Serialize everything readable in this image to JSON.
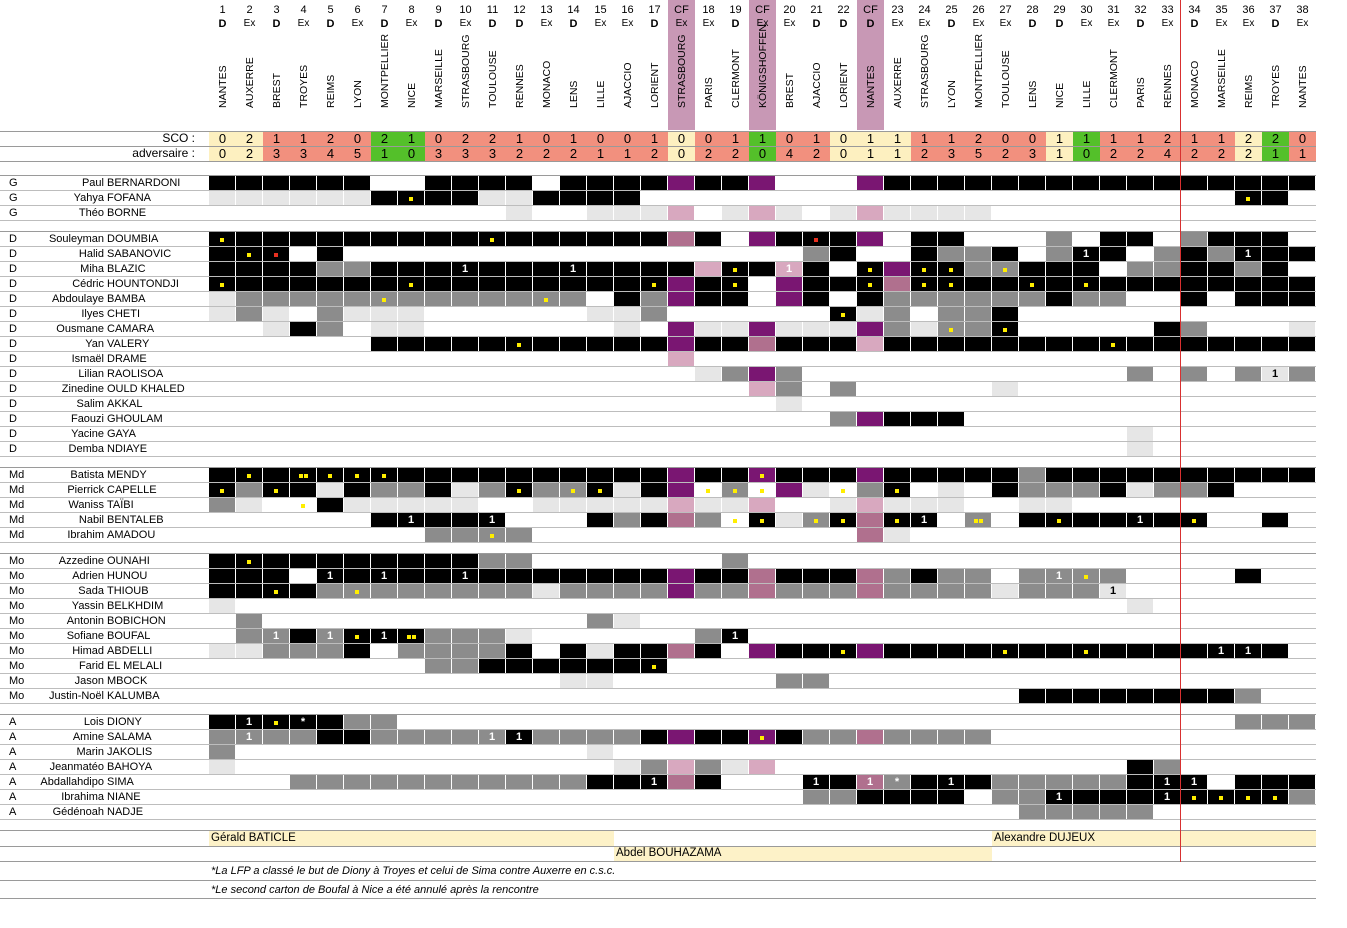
{
  "labels": {
    "sco": "SCO :",
    "adversaire": "adversaire :"
  },
  "matches": [
    {
      "n": "1",
      "c": "D",
      "o": "NANTES",
      "s": "0",
      "a": "0"
    },
    {
      "n": "2",
      "c": "Ex",
      "o": "AUXERRE",
      "s": "2",
      "a": "2"
    },
    {
      "n": "3",
      "c": "D",
      "o": "BREST",
      "s": "1",
      "a": "3"
    },
    {
      "n": "4",
      "c": "Ex",
      "o": "TROYES",
      "s": "1",
      "a": "3"
    },
    {
      "n": "5",
      "c": "D",
      "o": "REIMS",
      "s": "2",
      "a": "4"
    },
    {
      "n": "6",
      "c": "Ex",
      "o": "LYON",
      "s": "0",
      "a": "5"
    },
    {
      "n": "7",
      "c": "D",
      "o": "MONTPELLIER",
      "s": "2",
      "a": "1"
    },
    {
      "n": "8",
      "c": "Ex",
      "o": "NICE",
      "s": "1",
      "a": "0"
    },
    {
      "n": "9",
      "c": "D",
      "o": "MARSEILLE",
      "s": "0",
      "a": "3"
    },
    {
      "n": "10",
      "c": "Ex",
      "o": "STRASBOURG",
      "s": "2",
      "a": "3"
    },
    {
      "n": "11",
      "c": "D",
      "o": "TOULOUSE",
      "s": "2",
      "a": "3"
    },
    {
      "n": "12",
      "c": "D",
      "o": "RENNES",
      "s": "1",
      "a": "2"
    },
    {
      "n": "13",
      "c": "Ex",
      "o": "MONACO",
      "s": "0",
      "a": "2"
    },
    {
      "n": "14",
      "c": "D",
      "o": "LENS",
      "s": "1",
      "a": "2"
    },
    {
      "n": "15",
      "c": "Ex",
      "o": "LILLE",
      "s": "0",
      "a": "1"
    },
    {
      "n": "16",
      "c": "Ex",
      "o": "AJACCIO",
      "s": "0",
      "a": "1"
    },
    {
      "n": "17",
      "c": "D",
      "o": "LORIENT",
      "s": "1",
      "a": "2"
    },
    {
      "n": "CF",
      "c": "Ex",
      "o": "STRASBOURG",
      "s": "0",
      "a": "0",
      "cf": true
    },
    {
      "n": "18",
      "c": "Ex",
      "o": "PARIS",
      "s": "0",
      "a": "2"
    },
    {
      "n": "19",
      "c": "D",
      "o": "CLERMONT",
      "s": "1",
      "a": "2"
    },
    {
      "n": "CF",
      "c": "Ex",
      "o": "KÖNIGSHOFFEN",
      "s": "1",
      "a": "0",
      "cf": true
    },
    {
      "n": "20",
      "c": "Ex",
      "o": "BREST",
      "s": "0",
      "a": "4"
    },
    {
      "n": "21",
      "c": "D",
      "o": "AJACCIO",
      "s": "1",
      "a": "2"
    },
    {
      "n": "22",
      "c": "D",
      "o": "LORIENT",
      "s": "0",
      "a": "0"
    },
    {
      "n": "CF",
      "c": "D",
      "o": "NANTES",
      "s": "1",
      "a": "1",
      "cf": true
    },
    {
      "n": "23",
      "c": "Ex",
      "o": "AUXERRE",
      "s": "1",
      "a": "1"
    },
    {
      "n": "24",
      "c": "Ex",
      "o": "STRASBOURG",
      "s": "1",
      "a": "2"
    },
    {
      "n": "25",
      "c": "D",
      "o": "LYON",
      "s": "1",
      "a": "3"
    },
    {
      "n": "26",
      "c": "Ex",
      "o": "MONTPELLIER",
      "s": "2",
      "a": "5"
    },
    {
      "n": "27",
      "c": "Ex",
      "o": "TOULOUSE",
      "s": "0",
      "a": "2"
    },
    {
      "n": "28",
      "c": "D",
      "o": "LENS",
      "s": "0",
      "a": "3"
    },
    {
      "n": "29",
      "c": "D",
      "o": "NICE",
      "s": "1",
      "a": "1"
    },
    {
      "n": "30",
      "c": "Ex",
      "o": "LILLE",
      "s": "1",
      "a": "0"
    },
    {
      "n": "31",
      "c": "Ex",
      "o": "CLERMONT",
      "s": "1",
      "a": "2"
    },
    {
      "n": "32",
      "c": "D",
      "o": "PARIS",
      "s": "1",
      "a": "2"
    },
    {
      "n": "33",
      "c": "Ex",
      "o": "RENNES",
      "s": "2",
      "a": "4"
    },
    {
      "n": "34",
      "c": "D",
      "o": "MONACO",
      "s": "1",
      "a": "2"
    },
    {
      "n": "35",
      "c": "Ex",
      "o": "MARSEILLE",
      "s": "1",
      "a": "2"
    },
    {
      "n": "36",
      "c": "Ex",
      "o": "REIMS",
      "s": "2",
      "a": "2"
    },
    {
      "n": "37",
      "c": "D",
      "o": "TROYES",
      "s": "2",
      "a": "1"
    },
    {
      "n": "38",
      "c": "Ex",
      "o": "NANTES",
      "s": "0",
      "a": "1"
    }
  ],
  "colors": {
    "k": "#000000",
    "g": "#8c8c8c",
    "l": "#e6e6e6",
    "w": "#ffffff",
    "P": "#7a1672",
    "Pm": "#b0708e",
    "Pl": "#d8a8bf",
    "Pc": "#c898b5",
    "win": "#54c02a",
    "draw": "#fdf0c0",
    "loss": "#f2907e",
    "yellow": "#ffee00",
    "red": "#e83020",
    "coach": "#fdf2c8",
    "redline": "#d83030"
  },
  "groups": [
    {
      "players": [
        {
          "pos": "G",
          "first": "Paul",
          "last": "BERNARDONI",
          "cells": "kkkkkkwwkkkkwkkkkPkkPwwwPkkkkkkkkkkkkkk"
        },
        {
          "pos": "G",
          "first": "Yahya",
          "last": "FOFANA",
          "cells": "llllllkk:ykkllkkkkwwwwwwwwwwwwwwwwwwwwwwwwwwwwwwww"
        },
        {
          "pos": "G",
          "first": "Théo",
          "last": "BORNE",
          "cells": "wwwwwwwwwwwlwwllPlwlPlwlPllllwwwwwwwwwwwwww"
        }
      ]
    },
    {
      "players": [
        {
          "pos": "D",
          "first": "Souleyman",
          "last": "DOUMBIA",
          "cells": ""
        },
        {
          "pos": "D",
          "first": "Halid",
          "last": "SABANOVIC",
          "cells": ""
        },
        {
          "pos": "D",
          "first": "Miha",
          "last": "BLAZIC",
          "cells": ""
        },
        {
          "pos": "D",
          "first": "Cédric",
          "last": "HOUNTONDJI",
          "cells": ""
        },
        {
          "pos": "D",
          "first": "Abdoulaye",
          "last": "BAMBA",
          "cells": ""
        },
        {
          "pos": "D",
          "first": "Ilyes",
          "last": "CHETI",
          "cells": ""
        },
        {
          "pos": "D",
          "first": "Ousmane",
          "last": "CAMARA",
          "cells": ""
        },
        {
          "pos": "D",
          "first": "Yan",
          "last": "VALERY",
          "cells": ""
        },
        {
          "pos": "D",
          "first": "Ismaël",
          "last": "DRAME",
          "cells": ""
        },
        {
          "pos": "D",
          "first": "Lilian",
          "last": "RAOLISOA",
          "cells": ""
        },
        {
          "pos": "D",
          "first": "Zinedine",
          "last": "OULD KHALED",
          "cells": ""
        },
        {
          "pos": "D",
          "first": "Salim",
          "last": "AKKAL",
          "cells": ""
        },
        {
          "pos": "D",
          "first": "Faouzi",
          "last": "GHOULAM",
          "cells": ""
        },
        {
          "pos": "D",
          "first": "Yacine",
          "last": "GAYA",
          "cells": ""
        },
        {
          "pos": "D",
          "first": "Demba",
          "last": "NDIAYE",
          "cells": ""
        }
      ]
    },
    {
      "players": [
        {
          "pos": "Md",
          "first": "Batista",
          "last": "MENDY",
          "cells": ""
        },
        {
          "pos": "Md",
          "first": "Pierrick",
          "last": "CAPELLE",
          "cells": ""
        },
        {
          "pos": "Md",
          "first": "Waniss",
          "last": "TAÏBI",
          "cells": ""
        },
        {
          "pos": "Md",
          "first": "Nabil",
          "last": "BENTALEB",
          "cells": ""
        },
        {
          "pos": "Md",
          "first": "Ibrahim",
          "last": "AMADOU",
          "cells": ""
        }
      ]
    },
    {
      "players": [
        {
          "pos": "Mo",
          "first": "Azzedine",
          "last": "OUNAHI",
          "cells": ""
        },
        {
          "pos": "Mo",
          "first": "Adrien",
          "last": "HUNOU",
          "cells": ""
        },
        {
          "pos": "Mo",
          "first": "Sada",
          "last": "THIOUB",
          "cells": ""
        },
        {
          "pos": "Mo",
          "first": "Yassin",
          "last": "BELKHDIM",
          "cells": ""
        },
        {
          "pos": "Mo",
          "first": "Antonin",
          "last": "BOBICHON",
          "cells": ""
        },
        {
          "pos": "Mo",
          "first": "Sofiane",
          "last": "BOUFAL",
          "cells": ""
        },
        {
          "pos": "Mo",
          "first": "Himad",
          "last": "ABDELLI",
          "cells": ""
        },
        {
          "pos": "Mo",
          "first": "Farid",
          "last": "EL MELALI",
          "cells": ""
        },
        {
          "pos": "Mo",
          "first": "Jason",
          "last": "MBOCK",
          "cells": ""
        },
        {
          "pos": "Mo",
          "first": "Justin-Noël",
          "last": "KALUMBA",
          "cells": ""
        }
      ]
    },
    {
      "players": [
        {
          "pos": "A",
          "first": "Lois",
          "last": "DIONY",
          "cells": ""
        },
        {
          "pos": "A",
          "first": "Amine",
          "last": "SALAMA",
          "cells": ""
        },
        {
          "pos": "A",
          "first": "Marin",
          "last": "JAKOLIS",
          "cells": ""
        },
        {
          "pos": "A",
          "first": "Jeanmatéo",
          "last": "BAHOYA",
          "cells": ""
        },
        {
          "pos": "A",
          "first": "Abdallahdipo",
          "last": "SIMA",
          "cells": ""
        },
        {
          "pos": "A",
          "first": "Ibrahima",
          "last": "NIANE",
          "cells": ""
        },
        {
          "pos": "A",
          "first": "Gédénoah",
          "last": "NADJE",
          "cells": ""
        }
      ]
    }
  ],
  "coaches": [
    {
      "name": "Gérald BATICLE",
      "from": 0,
      "to": 15
    },
    {
      "name": "Abdel BOUHAZAMA",
      "from": 15,
      "to": 29
    },
    {
      "name": "Alexandre DUJEUX",
      "from": 29,
      "to": 41
    }
  ],
  "notes": [
    "*La LFP a classé le but de Diony à Troyes et celui de Sima contre Auxerre en c.s.c.",
    "*Le second carton de Boufal à Nice a été annulé après la rencontre"
  ]
}
